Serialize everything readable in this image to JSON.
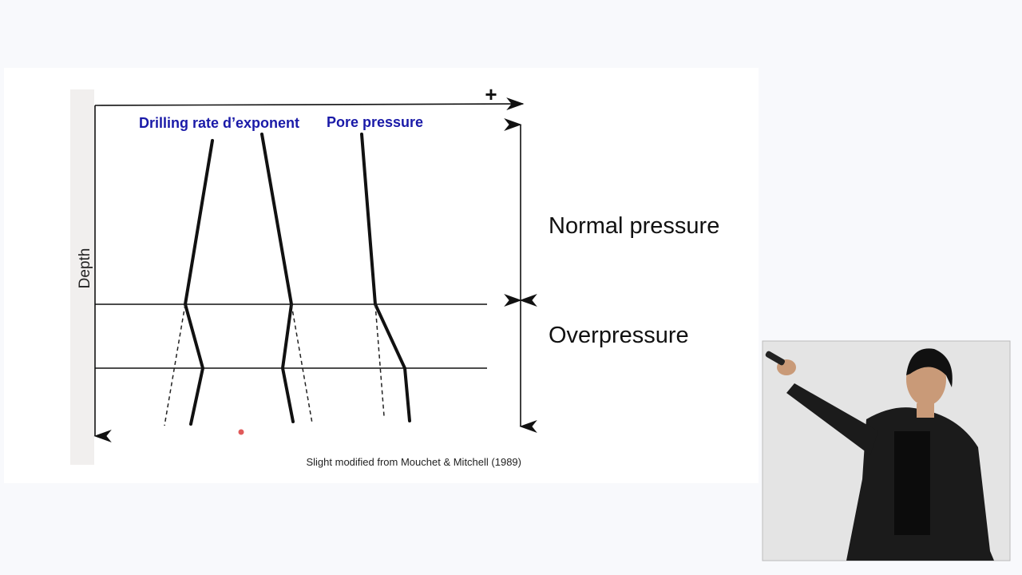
{
  "diagram": {
    "axis_plus": "+",
    "axis_depth": "Depth",
    "curve_labels": [
      "Drilling rate d’exponent",
      "Pore pressure"
    ],
    "zones": [
      "Normal pressure",
      "Overpressure"
    ],
    "source": "Slight modified from Mouchet & Mitchell (1989)"
  }
}
